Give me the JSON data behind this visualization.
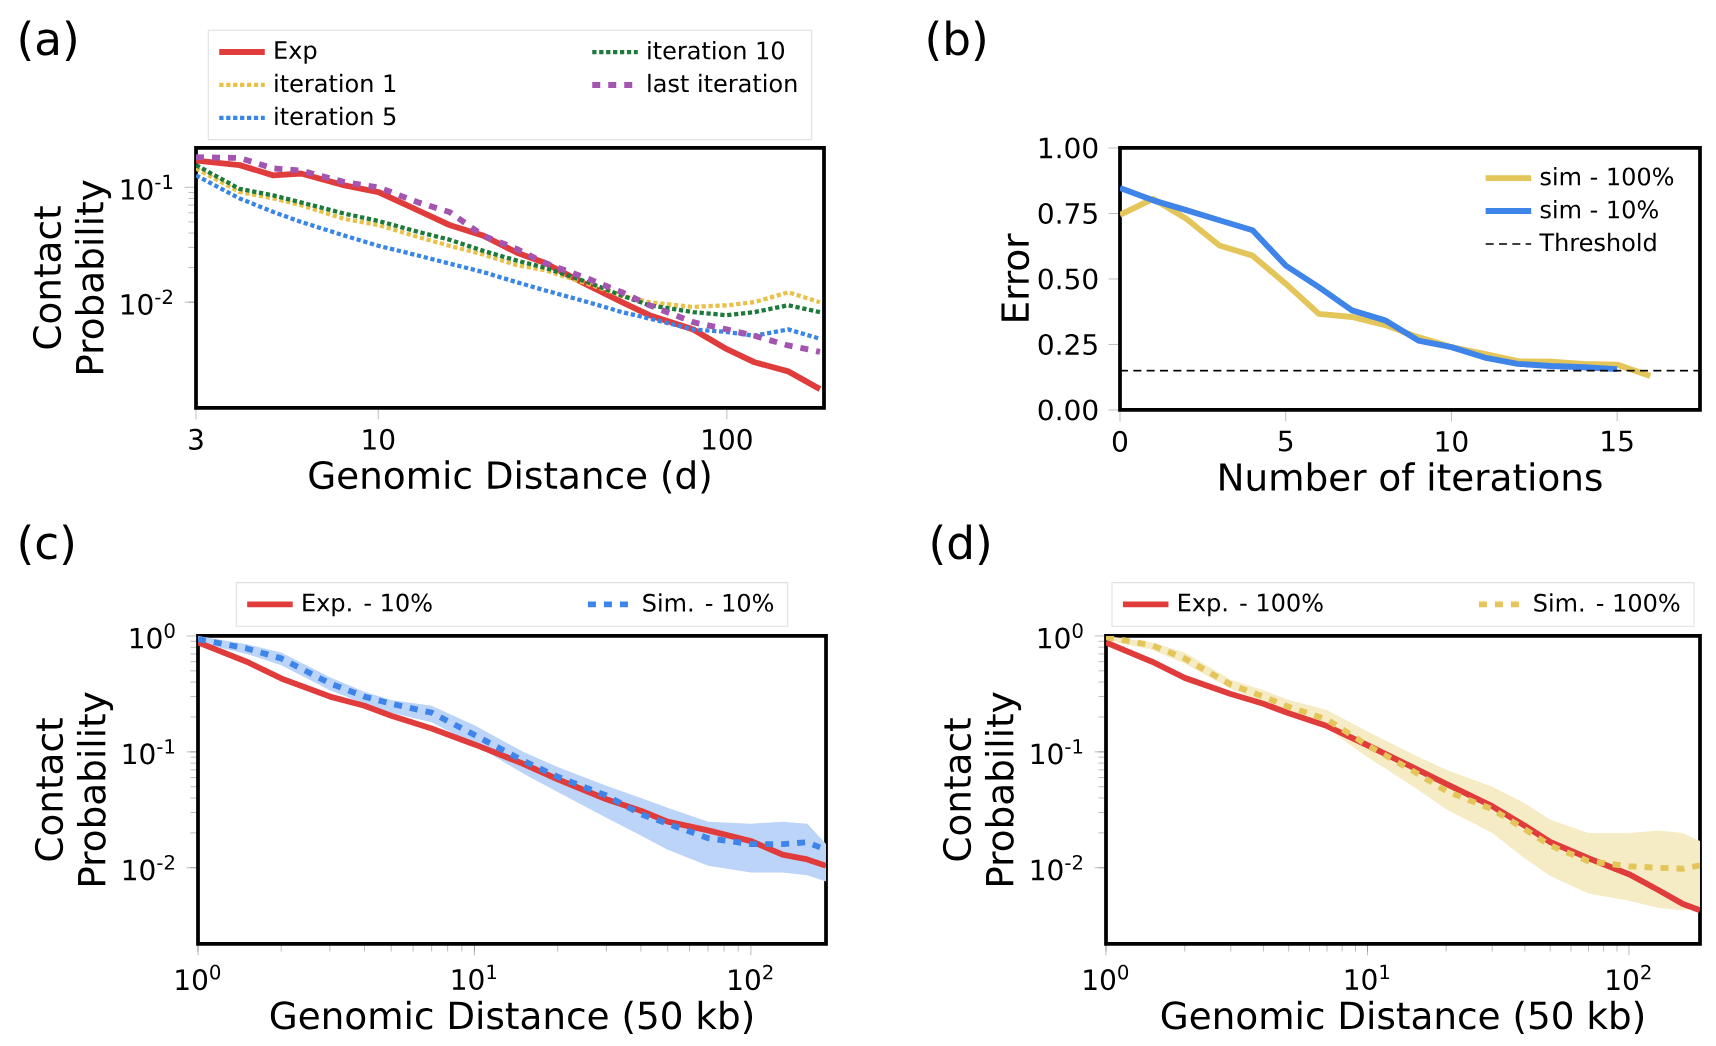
{
  "chart_data": [
    {
      "type": "line",
      "title": "(a)",
      "xlabel": "Genomic Distance (d)",
      "ylabel": "Contact Probability",
      "log": "xy",
      "xlim": [
        3,
        190
      ],
      "ylim": [
        0.0012,
        0.22
      ],
      "xticks": [
        3,
        10,
        100
      ],
      "yticks": [
        {
          "value": 0.01,
          "label": "10$^{-2}$"
        },
        {
          "value": 0.1,
          "label": "10$^{-1}$"
        }
      ],
      "legend": "top",
      "x": [
        3,
        4,
        5,
        6,
        8,
        10,
        13,
        16,
        20,
        25,
        30,
        40,
        50,
        60,
        80,
        100,
        120,
        150,
        185
      ],
      "series": [
        {
          "name": "Exp",
          "color": "#e03c3c",
          "line_style": "solid",
          "values": [
            0.171,
            0.156,
            0.127,
            0.132,
            0.104,
            0.091,
            0.063,
            0.047,
            0.038,
            0.027,
            0.022,
            0.014,
            0.01,
            0.0077,
            0.0058,
            0.0039,
            0.003,
            0.0025,
            0.00175
          ]
        },
        {
          "name": "iteration 1",
          "color": "#e8c14a",
          "line_style": "dotted",
          "values": [
            0.146,
            0.091,
            0.08,
            0.07,
            0.053,
            0.047,
            0.037,
            0.031,
            0.026,
            0.021,
            0.019,
            0.0144,
            0.0114,
            0.01,
            0.0091,
            0.0094,
            0.01,
            0.0122,
            0.01
          ]
        },
        {
          "name": "iteration 5",
          "color": "#3a86e8",
          "line_style": "dotted",
          "values": [
            0.127,
            0.08,
            0.061,
            0.05,
            0.038,
            0.031,
            0.0255,
            0.0217,
            0.0183,
            0.0149,
            0.0127,
            0.01,
            0.0082,
            0.0072,
            0.0058,
            0.0055,
            0.0051,
            0.0058,
            0.0048
          ]
        },
        {
          "name": "iteration 10",
          "color": "#1e7a3a",
          "line_style": "dotted",
          "values": [
            0.156,
            0.097,
            0.085,
            0.074,
            0.059,
            0.051,
            0.041,
            0.035,
            0.028,
            0.023,
            0.02,
            0.0149,
            0.0114,
            0.0094,
            0.0082,
            0.0077,
            0.0082,
            0.0094,
            0.0082
          ]
        },
        {
          "name": "last iteration",
          "color": "#a455b0",
          "line_style": "dashed",
          "values": [
            0.183,
            0.18,
            0.146,
            0.14,
            0.111,
            0.1,
            0.074,
            0.061,
            0.038,
            0.029,
            0.022,
            0.016,
            0.0122,
            0.0094,
            0.0067,
            0.0058,
            0.0051,
            0.0042,
            0.0037
          ]
        }
      ]
    },
    {
      "type": "line",
      "title": "(b)",
      "xlabel": "Number of iterations",
      "ylabel": "Error",
      "xlim": [
        0,
        17.5
      ],
      "ylim": [
        0,
        1
      ],
      "xticks": [
        0,
        5,
        10,
        15
      ],
      "yticks": [
        {
          "value": 0,
          "label": "0.00"
        },
        {
          "value": 0.25,
          "label": "0.25"
        },
        {
          "value": 0.5,
          "label": "0.50"
        },
        {
          "value": 0.75,
          "label": "0.75"
        },
        {
          "value": 1,
          "label": "1.00"
        }
      ],
      "legend": "top right",
      "x": [
        0,
        1,
        2,
        3,
        4,
        5,
        6,
        7,
        8,
        9,
        10,
        11,
        12,
        13,
        14,
        15,
        16
      ],
      "series": [
        {
          "name": "sim - 100%",
          "color": "#e3c55a",
          "line_style": "solid",
          "values": [
            0.745,
            0.806,
            0.73,
            0.628,
            0.589,
            0.482,
            0.367,
            0.355,
            0.324,
            0.278,
            0.24,
            0.214,
            0.186,
            0.184,
            0.176,
            0.173,
            0.13
          ]
        },
        {
          "name": "sim - 10%",
          "color": "#3f84e8",
          "line_style": "solid",
          "values": [
            0.847,
            0.8,
            0.763,
            0.724,
            0.686,
            0.551,
            0.469,
            0.38,
            0.342,
            0.265,
            0.24,
            0.2,
            0.176,
            0.168,
            0.163,
            0.156,
            null
          ]
        }
      ],
      "ref_lines": [
        {
          "axis": "y",
          "value": 0.15,
          "label": "Threshold",
          "color": "#000000",
          "line_style": "dashed"
        }
      ]
    },
    {
      "type": "line",
      "title": "(c)",
      "xlabel": "Genomic Distance (50 kb)",
      "ylabel": "Contact Probability",
      "log": "xy",
      "xlim": [
        1,
        187
      ],
      "ylim": [
        0.0022,
        1
      ],
      "xticks": [
        {
          "value": 1,
          "label": "10$^{0}$"
        },
        {
          "value": 10,
          "label": "10$^{1}$"
        },
        {
          "value": 100,
          "label": "10$^{2}$"
        }
      ],
      "yticks": [
        {
          "value": 0.01,
          "label": "10$^{-2}$"
        },
        {
          "value": 0.1,
          "label": "10$^{-1}$"
        },
        {
          "value": 1,
          "label": "10$^{0}$"
        }
      ],
      "legend": "top",
      "x": [
        1,
        1.5,
        2,
        3,
        4,
        5,
        7,
        10,
        15,
        20,
        30,
        40,
        50,
        70,
        100,
        130,
        160,
        187
      ],
      "series": [
        {
          "name": "Exp. - 10%",
          "color": "#e03c3c",
          "line_style": "solid",
          "values": [
            0.88,
            0.6,
            0.43,
            0.3,
            0.25,
            0.205,
            0.159,
            0.116,
            0.079,
            0.058,
            0.039,
            0.031,
            0.025,
            0.021,
            0.017,
            0.013,
            0.0118,
            0.0104
          ]
        },
        {
          "name": "Sim. - 10%",
          "color": "#3f84e8",
          "line_style": "dashed",
          "values": [
            0.94,
            0.78,
            0.64,
            0.39,
            0.3,
            0.26,
            0.218,
            0.14,
            0.084,
            0.061,
            0.042,
            0.029,
            0.024,
            0.018,
            0.016,
            0.016,
            0.0166,
            0.0143
          ],
          "upper": [
            1.0,
            0.85,
            0.72,
            0.44,
            0.33,
            0.28,
            0.25,
            0.17,
            0.1,
            0.074,
            0.051,
            0.04,
            0.033,
            0.025,
            0.024,
            0.025,
            0.024,
            0.016
          ],
          "lower": [
            0.88,
            0.7,
            0.56,
            0.34,
            0.26,
            0.218,
            0.18,
            0.116,
            0.065,
            0.045,
            0.027,
            0.019,
            0.0143,
            0.0104,
            0.0091,
            0.0091,
            0.0086,
            0.0076
          ]
        }
      ]
    },
    {
      "type": "line",
      "title": "(d)",
      "xlabel": "Genomic Distance (50 kb)",
      "ylabel": "Contact Probability",
      "log": "xy",
      "xlim": [
        1,
        187
      ],
      "ylim": [
        0.0022,
        1
      ],
      "xticks": [
        {
          "value": 1,
          "label": "10$^{0}$"
        },
        {
          "value": 10,
          "label": "10$^{1}$"
        },
        {
          "value": 100,
          "label": "10$^{2}$"
        }
      ],
      "yticks": [
        {
          "value": 0.01,
          "label": "10$^{-2}$"
        },
        {
          "value": 0.1,
          "label": "10$^{-1}$"
        },
        {
          "value": 1,
          "label": "10$^{0}$"
        }
      ],
      "legend": "top",
      "x": [
        1,
        1.5,
        2,
        3,
        4,
        5,
        7,
        10,
        15,
        20,
        30,
        40,
        50,
        70,
        100,
        130,
        160,
        187
      ],
      "series": [
        {
          "name": "Exp. - 100%",
          "color": "#e03c3c",
          "line_style": "solid",
          "values": [
            0.88,
            0.6,
            0.435,
            0.316,
            0.26,
            0.215,
            0.167,
            0.114,
            0.073,
            0.053,
            0.034,
            0.023,
            0.0167,
            0.0121,
            0.0088,
            0.0064,
            0.0049,
            0.0043
          ]
        },
        {
          "name": "Sim. - 100%",
          "color": "#e3c55a",
          "line_style": "dashed",
          "values": [
            0.98,
            0.83,
            0.64,
            0.38,
            0.3,
            0.245,
            0.19,
            0.114,
            0.068,
            0.046,
            0.032,
            0.0215,
            0.0156,
            0.0114,
            0.0103,
            0.01,
            0.0098,
            0.0105
          ],
          "upper": [
            1.0,
            0.88,
            0.72,
            0.42,
            0.34,
            0.28,
            0.23,
            0.15,
            0.095,
            0.07,
            0.05,
            0.036,
            0.026,
            0.02,
            0.02,
            0.021,
            0.02,
            0.017
          ],
          "lower": [
            0.92,
            0.76,
            0.58,
            0.35,
            0.27,
            0.215,
            0.16,
            0.09,
            0.05,
            0.032,
            0.02,
            0.012,
            0.0085,
            0.006,
            0.0052,
            0.0045,
            0.0043,
            0.0045
          ]
        }
      ]
    }
  ]
}
